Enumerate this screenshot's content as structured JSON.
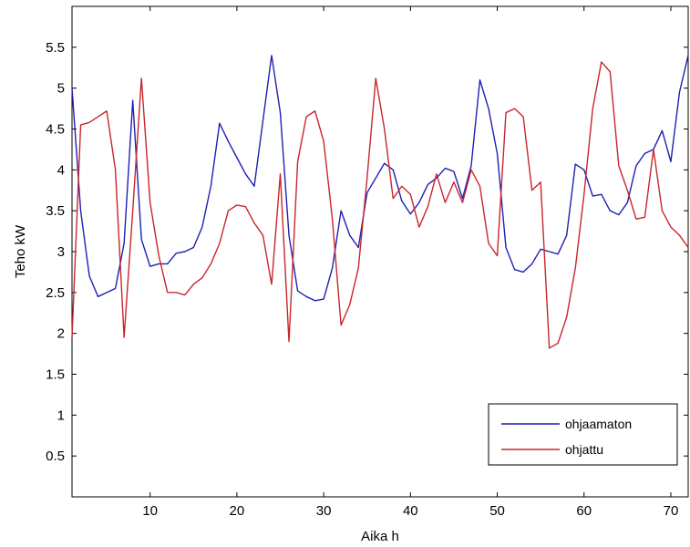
{
  "chart_data": {
    "type": "line",
    "title": "",
    "xlabel": "Aika h",
    "ylabel": "Teho kW",
    "xlim": [
      1,
      72
    ],
    "ylim": [
      0,
      6
    ],
    "xticks": [
      10,
      20,
      30,
      40,
      50,
      60,
      70
    ],
    "yticks": [
      0.5,
      1,
      1.5,
      2,
      2.5,
      3,
      3.5,
      4,
      4.5,
      5,
      5.5
    ],
    "xtick_labels": [
      "10",
      "20",
      "30",
      "40",
      "50",
      "60",
      "70"
    ],
    "ytick_labels": [
      "0.5",
      "1",
      "1.5",
      "2",
      "2.5",
      "3",
      "3.5",
      "4",
      "4.5",
      "5",
      "5.5"
    ],
    "grid": false,
    "legend_position": "bottom-right",
    "x": [
      1,
      2,
      3,
      4,
      5,
      6,
      7,
      8,
      9,
      10,
      11,
      12,
      13,
      14,
      15,
      16,
      17,
      18,
      19,
      20,
      21,
      22,
      23,
      24,
      25,
      26,
      27,
      28,
      29,
      30,
      31,
      32,
      33,
      34,
      35,
      36,
      37,
      38,
      39,
      40,
      41,
      42,
      43,
      44,
      45,
      46,
      47,
      48,
      49,
      50,
      51,
      52,
      53,
      54,
      55,
      56,
      57,
      58,
      59,
      60,
      61,
      62,
      63,
      64,
      65,
      66,
      67,
      68,
      69,
      70,
      71,
      72
    ],
    "series": [
      {
        "name": "ohjaamaton",
        "color": "#1f1fb4",
        "values": [
          5.0,
          3.5,
          2.7,
          2.45,
          2.5,
          2.55,
          3.1,
          4.85,
          3.15,
          2.82,
          2.85,
          2.85,
          2.98,
          3.0,
          3.05,
          3.3,
          3.8,
          4.57,
          4.35,
          4.15,
          3.95,
          3.8,
          4.6,
          5.4,
          4.7,
          3.2,
          2.52,
          2.45,
          2.4,
          2.42,
          2.8,
          3.5,
          3.2,
          3.05,
          3.72,
          3.9,
          4.08,
          4.0,
          3.62,
          3.46,
          3.6,
          3.82,
          3.9,
          4.02,
          3.98,
          3.65,
          4.05,
          5.1,
          4.75,
          4.2,
          3.05,
          2.78,
          2.75,
          2.85,
          3.03,
          3.0,
          2.97,
          3.2,
          4.07,
          4.0,
          3.68,
          3.7,
          3.5,
          3.45,
          3.6,
          4.05,
          4.2,
          4.25,
          4.48,
          4.1,
          4.95,
          5.4
        ]
      },
      {
        "name": "ohjattu",
        "color": "#c8262b",
        "values": [
          1.95,
          4.55,
          4.58,
          4.65,
          4.72,
          4.0,
          1.95,
          3.5,
          5.12,
          3.6,
          2.95,
          2.5,
          2.5,
          2.47,
          2.6,
          2.68,
          2.85,
          3.1,
          3.5,
          3.57,
          3.55,
          3.35,
          3.2,
          2.6,
          3.95,
          1.9,
          4.1,
          4.65,
          4.72,
          4.35,
          3.4,
          2.1,
          2.35,
          2.8,
          3.9,
          5.12,
          4.5,
          3.65,
          3.8,
          3.7,
          3.3,
          3.55,
          3.95,
          3.6,
          3.85,
          3.6,
          4.0,
          3.8,
          3.1,
          2.95,
          4.7,
          4.75,
          4.65,
          3.75,
          3.85,
          1.82,
          1.88,
          2.2,
          2.8,
          3.7,
          4.75,
          5.32,
          5.2,
          4.05,
          3.75,
          3.4,
          3.42,
          4.25,
          3.5,
          3.3,
          3.2,
          3.05
        ]
      }
    ]
  }
}
